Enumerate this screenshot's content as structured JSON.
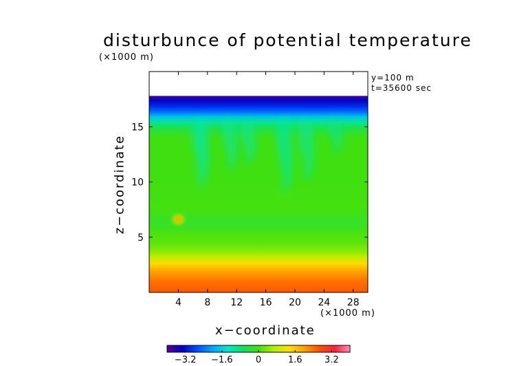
{
  "chart_data": {
    "type": "heatmap",
    "title": "disturbunce of potential temperature",
    "y_unit": "(×1000 m)",
    "x_unit": "(×1000 m)",
    "xlabel": "x−coordinate",
    "ylabel": "z−coordinate",
    "annotations": [
      "y=100 m",
      "t=35600 sec"
    ],
    "xlim": [
      0,
      30
    ],
    "ylim": [
      0,
      20
    ],
    "x_ticks": [
      {
        "value": 4,
        "label": "4"
      },
      {
        "value": 8,
        "label": "8"
      },
      {
        "value": 12,
        "label": "12"
      },
      {
        "value": 16,
        "label": "16"
      },
      {
        "value": 20,
        "label": "20"
      },
      {
        "value": 24,
        "label": "24"
      },
      {
        "value": 28,
        "label": "28"
      }
    ],
    "y_ticks": [
      {
        "value": 5,
        "label": "5"
      },
      {
        "value": 10,
        "label": "10"
      },
      {
        "value": 15,
        "label": "15"
      }
    ],
    "colorbar": {
      "range": [
        -4,
        4
      ],
      "ticks": [
        {
          "value": -3.2,
          "label": "−3.2"
        },
        {
          "value": -1.6,
          "label": "−1.6"
        },
        {
          "value": 0,
          "label": "0"
        },
        {
          "value": 1.6,
          "label": "1.6"
        },
        {
          "value": 3.2,
          "label": "3.2"
        }
      ],
      "colors": [
        "#5a0090",
        "#0000c8",
        "#0050ff",
        "#00a8ff",
        "#00e8c8",
        "#10e060",
        "#40e010",
        "#b0f000",
        "#ffe000",
        "#ffa000",
        "#ff5000",
        "#ff2040",
        "#ff90b8"
      ]
    },
    "vertical_profile": [
      {
        "z": 0.0,
        "value": 2.6
      },
      {
        "z": 1.0,
        "value": 2.4
      },
      {
        "z": 2.0,
        "value": 1.9
      },
      {
        "z": 2.6,
        "value": 1.4
      },
      {
        "z": 3.2,
        "value": 0.8
      },
      {
        "z": 3.8,
        "value": 0.4
      },
      {
        "z": 4.5,
        "value": 0.15
      },
      {
        "z": 6.0,
        "value": 0.05
      },
      {
        "z": 10.0,
        "value": 0.0
      },
      {
        "z": 14.0,
        "value": 0.0
      },
      {
        "z": 14.8,
        "value": -0.4
      },
      {
        "z": 15.4,
        "value": -1.0
      },
      {
        "z": 15.9,
        "value": -1.7
      },
      {
        "z": 16.4,
        "value": -2.5
      },
      {
        "z": 16.9,
        "value": -3.0
      },
      {
        "z": 17.4,
        "value": -3.4
      },
      {
        "z": 17.8,
        "value": -3.8
      }
    ],
    "data_top": 17.8,
    "features": [
      {
        "kind": "plume",
        "x": 7.0,
        "z_top": 15.5,
        "z_bottom": 9.5,
        "value": -1.2
      },
      {
        "kind": "plume",
        "x": 11.0,
        "z_top": 15.5,
        "z_bottom": 11.0,
        "value": -1.0
      },
      {
        "kind": "plume",
        "x": 13.5,
        "z_top": 15.5,
        "z_bottom": 11.5,
        "value": -1.0
      },
      {
        "kind": "plume",
        "x": 18.5,
        "z_top": 15.5,
        "z_bottom": 9.0,
        "value": -1.1
      },
      {
        "kind": "plume",
        "x": 21.5,
        "z_top": 15.5,
        "z_bottom": 10.0,
        "value": -1.0
      },
      {
        "kind": "plume",
        "x": 25.5,
        "z_top": 15.5,
        "z_bottom": 12.5,
        "value": -0.9
      },
      {
        "kind": "layer",
        "z": 6.3,
        "value": -0.5
      },
      {
        "kind": "warm_spot",
        "x": 4.0,
        "z": 6.6,
        "value": 2.0
      }
    ]
  }
}
